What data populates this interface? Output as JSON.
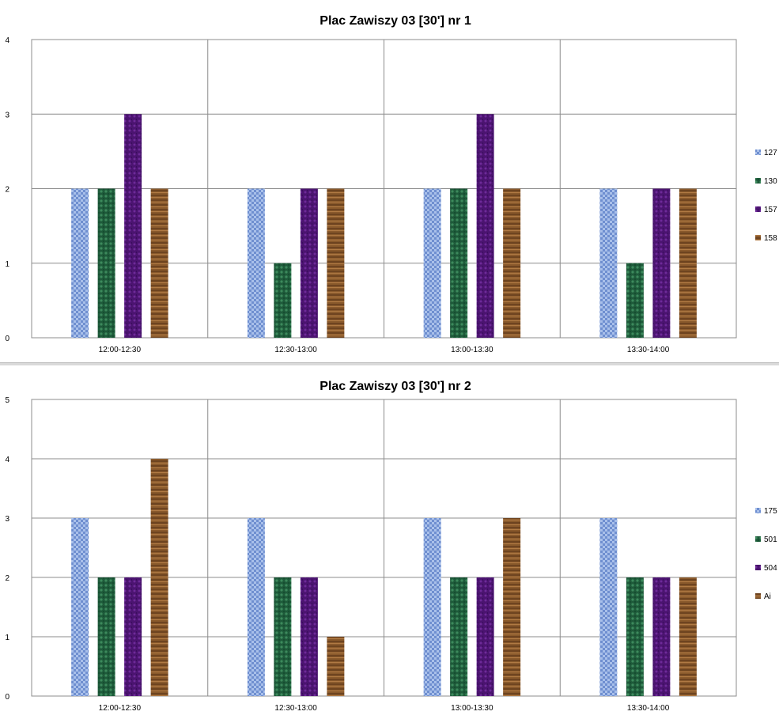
{
  "chart_data": [
    {
      "type": "bar",
      "title": "Plac Zawiszy 03 [30'] nr 1",
      "categories": [
        "12:00-12:30",
        "12:30-13:00",
        "13:00-13:30",
        "13:30-14:00"
      ],
      "series": [
        {
          "name": "127",
          "color": "#6f8fd0",
          "values": [
            2,
            2,
            2,
            2
          ]
        },
        {
          "name": "130",
          "color": "#1e5a3a",
          "values": [
            2,
            1,
            2,
            1
          ]
        },
        {
          "name": "157",
          "color": "#4b1470",
          "values": [
            3,
            2,
            3,
            2
          ]
        },
        {
          "name": "158",
          "color": "#8a5a2c",
          "values": [
            2,
            2,
            2,
            2
          ]
        }
      ],
      "ylim": [
        0,
        4
      ],
      "yticks": [
        0,
        1,
        2,
        3,
        4
      ],
      "grid": true,
      "legend": "right"
    },
    {
      "type": "bar",
      "title": "Plac Zawiszy 03 [30'] nr 2",
      "categories": [
        "12:00-12:30",
        "12:30-13:00",
        "13:00-13:30",
        "13:30-14:00"
      ],
      "series": [
        {
          "name": "175",
          "color": "#6f8fd0",
          "values": [
            3,
            3,
            3,
            3
          ]
        },
        {
          "name": "501",
          "color": "#1e5a3a",
          "values": [
            2,
            2,
            2,
            2
          ]
        },
        {
          "name": "504",
          "color": "#4b1470",
          "values": [
            2,
            2,
            2,
            2
          ]
        },
        {
          "name": "Ai",
          "color": "#8a5a2c",
          "values": [
            4,
            1,
            3,
            2
          ]
        }
      ],
      "ylim": [
        0,
        5
      ],
      "yticks": [
        0,
        1,
        2,
        3,
        4,
        5
      ],
      "grid": true,
      "legend": "right"
    }
  ]
}
